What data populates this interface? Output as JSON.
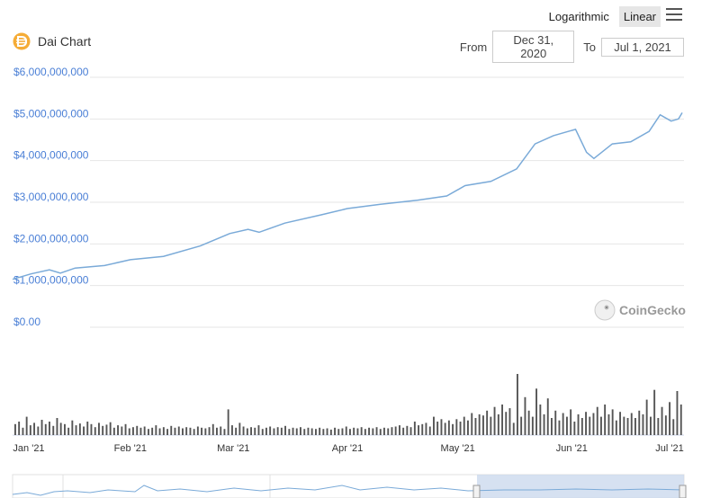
{
  "header": {
    "title": "Dai Chart",
    "scale_logarithmic": "Logarithmic",
    "scale_linear": "Linear",
    "from_label": "From",
    "from_value": "Dec 31, 2020",
    "to_label": "To",
    "to_value": "Jul 1, 2021"
  },
  "watermark": {
    "text": "CoinGecko",
    "icon": "coingecko-icon"
  },
  "colors": {
    "line": "#7aaad8",
    "volume": "#555555",
    "navigator_fill": "#ccd9ee",
    "brand": "#f5ac37"
  },
  "chart_data": {
    "type": "line",
    "title": "Dai Chart",
    "y_axis": {
      "ticks": [
        "$0.00",
        "$1,000,000,000",
        "$2,000,000,000",
        "$3,000,000,000",
        "$4,000,000,000",
        "$5,000,000,000",
        "$6,000,000,000"
      ],
      "ylim": [
        0,
        6000000000
      ]
    },
    "x_axis": {
      "ticks": [
        "Jan '21",
        "Feb '21",
        "Mar '21",
        "Apr '21",
        "May '21",
        "Jun '21",
        "Jul '21"
      ],
      "range": [
        "2020-12-31",
        "2021-07-01"
      ]
    },
    "grid": true,
    "series": [
      {
        "type": "line",
        "points": [
          [
            "2020-12-31",
            1150000000
          ],
          [
            "2021-01-05",
            1280000000
          ],
          [
            "2021-01-10",
            1380000000
          ],
          [
            "2021-01-13",
            1300000000
          ],
          [
            "2021-01-17",
            1420000000
          ],
          [
            "2021-01-25",
            1480000000
          ],
          [
            "2021-02-01",
            1620000000
          ],
          [
            "2021-02-10",
            1700000000
          ],
          [
            "2021-02-20",
            1950000000
          ],
          [
            "2021-02-28",
            2250000000
          ],
          [
            "2021-03-05",
            2350000000
          ],
          [
            "2021-03-08",
            2280000000
          ],
          [
            "2021-03-15",
            2500000000
          ],
          [
            "2021-03-25",
            2700000000
          ],
          [
            "2021-04-01",
            2850000000
          ],
          [
            "2021-04-10",
            2950000000
          ],
          [
            "2021-04-20",
            3050000000
          ],
          [
            "2021-04-28",
            3150000000
          ],
          [
            "2021-05-03",
            3400000000
          ],
          [
            "2021-05-10",
            3500000000
          ],
          [
            "2021-05-17",
            3800000000
          ],
          [
            "2021-05-22",
            4400000000
          ],
          [
            "2021-05-27",
            4600000000
          ],
          [
            "2021-06-02",
            4750000000
          ],
          [
            "2021-06-05",
            4200000000
          ],
          [
            "2021-06-07",
            4050000000
          ],
          [
            "2021-06-12",
            4400000000
          ],
          [
            "2021-06-17",
            4450000000
          ],
          [
            "2021-06-22",
            4700000000
          ],
          [
            "2021-06-25",
            5100000000
          ],
          [
            "2021-06-28",
            4950000000
          ],
          [
            "2021-06-30",
            5000000000
          ],
          [
            "2021-07-01",
            5150000000
          ]
        ]
      },
      {
        "type": "bar",
        "name": "volume",
        "values": [
          0.18,
          0.22,
          0.12,
          0.3,
          0.16,
          0.2,
          0.14,
          0.25,
          0.18,
          0.22,
          0.15,
          0.28,
          0.2,
          0.18,
          0.12,
          0.24,
          0.16,
          0.19,
          0.14,
          0.22,
          0.18,
          0.13,
          0.2,
          0.15,
          0.17,
          0.21,
          0.12,
          0.16,
          0.14,
          0.18,
          0.11,
          0.13,
          0.15,
          0.12,
          0.14,
          0.1,
          0.12,
          0.16,
          0.11,
          0.13,
          0.1,
          0.15,
          0.12,
          0.14,
          0.11,
          0.13,
          0.12,
          0.1,
          0.14,
          0.12,
          0.11,
          0.13,
          0.18,
          0.12,
          0.14,
          0.1,
          0.42,
          0.16,
          0.12,
          0.2,
          0.14,
          0.11,
          0.13,
          0.12,
          0.16,
          0.1,
          0.12,
          0.14,
          0.11,
          0.13,
          0.12,
          0.15,
          0.1,
          0.12,
          0.11,
          0.13,
          0.1,
          0.12,
          0.11,
          0.1,
          0.12,
          0.1,
          0.11,
          0.09,
          0.12,
          0.1,
          0.11,
          0.14,
          0.1,
          0.12,
          0.11,
          0.13,
          0.1,
          0.12,
          0.11,
          0.13,
          0.1,
          0.12,
          0.11,
          0.13,
          0.14,
          0.16,
          0.12,
          0.15,
          0.13,
          0.22,
          0.16,
          0.18,
          0.2,
          0.14,
          0.3,
          0.22,
          0.26,
          0.2,
          0.24,
          0.18,
          0.26,
          0.22,
          0.3,
          0.24,
          0.36,
          0.28,
          0.34,
          0.32,
          0.4,
          0.3,
          0.46,
          0.34,
          0.5,
          0.38,
          0.44,
          0.2,
          1.0,
          0.3,
          0.62,
          0.4,
          0.3,
          0.76,
          0.5,
          0.34,
          0.6,
          0.28,
          0.4,
          0.24,
          0.36,
          0.3,
          0.42,
          0.22,
          0.34,
          0.28,
          0.38,
          0.3,
          0.36,
          0.46,
          0.3,
          0.5,
          0.34,
          0.42,
          0.24,
          0.38,
          0.3,
          0.28,
          0.36,
          0.28,
          0.4,
          0.34,
          0.58,
          0.3,
          0.74,
          0.28,
          0.46,
          0.32,
          0.54,
          0.26,
          0.72,
          0.5
        ]
      }
    ]
  }
}
